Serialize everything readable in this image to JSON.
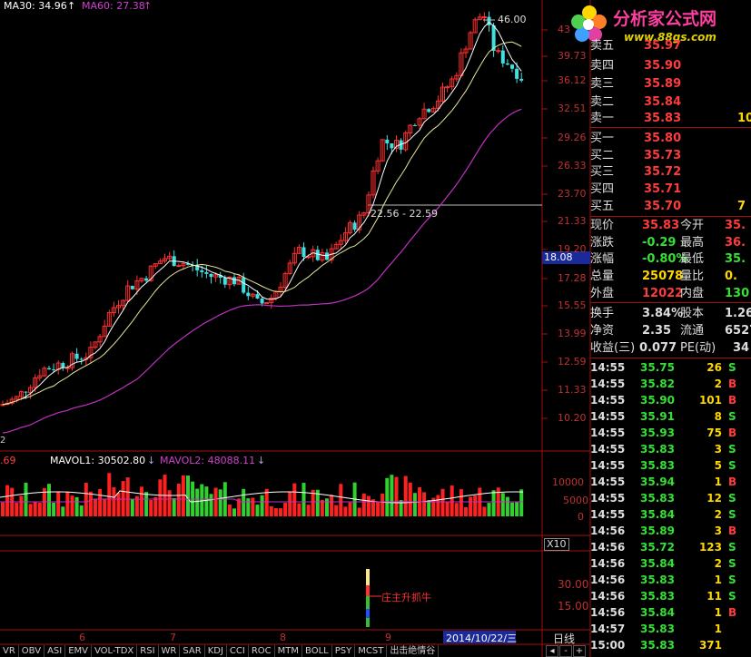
{
  "ma_labels": {
    "ma30": "MA30: 34.96",
    "ma60": "MA60: 27.38",
    "ma30_color": "#ffffff",
    "ma60_color": "#d040d0"
  },
  "logo": {
    "text": "分析家公式网",
    "url": "www.88gs.com"
  },
  "price_axis": [
    "43",
    "39.73",
    "36.12",
    "32.51",
    "29.26",
    "26.33",
    "23.70",
    "21.33",
    "19.20",
    "17.28",
    "15.55",
    "13.99",
    "12.59",
    "11.33",
    "10.20"
  ],
  "highlight_price": "18.08",
  "peak_label": "46.00",
  "range_label": "22.56 - 22.59",
  "left_stub": "2",
  "volume": {
    "left_stub": ".69",
    "mavol1": "MAVOL1: 30502.80",
    "mavol2": "MAVOL2: 48088.11",
    "axis": [
      "10000",
      "5000",
      "0"
    ],
    "scale": "X10"
  },
  "indicator": {
    "axis": [
      "30.00",
      "15.00"
    ],
    "label": "庄主升抓牛"
  },
  "months": [
    "6",
    "7",
    "8",
    "9"
  ],
  "date_box": "2014/10/22/三",
  "order_book": [
    {
      "name": "卖五",
      "price": "35.97",
      "vol": ""
    },
    {
      "name": "卖四",
      "price": "35.90",
      "vol": ""
    },
    {
      "name": "卖三",
      "price": "35.89",
      "vol": ""
    },
    {
      "name": "卖二",
      "price": "35.84",
      "vol": ""
    },
    {
      "name": "卖一",
      "price": "35.83",
      "vol": "10"
    },
    {
      "name": "买一",
      "price": "35.80",
      "vol": ""
    },
    {
      "name": "买二",
      "price": "35.73",
      "vol": ""
    },
    {
      "name": "买三",
      "price": "35.72",
      "vol": ""
    },
    {
      "name": "买四",
      "price": "35.71",
      "vol": ""
    },
    {
      "name": "买五",
      "price": "35.70",
      "vol": "7"
    }
  ],
  "stats": [
    {
      "l1": "现价",
      "v1": "35.83",
      "c1": "up",
      "l2": "今开",
      "v2": "35.",
      "c2": "up"
    },
    {
      "l1": "涨跌",
      "v1": "-0.29",
      "c1": "dn",
      "l2": "最高",
      "v2": "36.",
      "c2": "up"
    },
    {
      "l1": "涨幅",
      "v1": "-0.80%",
      "c1": "dn",
      "l2": "最低",
      "v2": "35.",
      "c2": "dn"
    },
    {
      "l1": "总量",
      "v1": "25078",
      "c1": "yel",
      "l2": "量比",
      "v2": "0.",
      "c2": "yel"
    },
    {
      "l1": "外盘",
      "v1": "12022",
      "c1": "up",
      "l2": "内盘",
      "v2": "130",
      "c2": "dn"
    },
    {
      "l1": "换手",
      "v1": "3.84%",
      "c1": "wh",
      "l2": "股本",
      "v2": "1.26",
      "c2": "wh"
    },
    {
      "l1": "净资",
      "v1": "2.35",
      "c1": "wh",
      "l2": "流通",
      "v2": "6527",
      "c2": "wh"
    },
    {
      "l1": "收益(三)",
      "v1": "0.077",
      "c1": "wh",
      "l2": "PE(动)",
      "v2": "34",
      "c2": "wh"
    }
  ],
  "ticks": [
    {
      "t": "14:55",
      "p": "35.75",
      "pc": "dn",
      "v": "26",
      "f": "S"
    },
    {
      "t": "14:55",
      "p": "35.82",
      "pc": "dn",
      "v": "2",
      "f": "B"
    },
    {
      "t": "14:55",
      "p": "35.90",
      "pc": "dn",
      "v": "101",
      "f": "B"
    },
    {
      "t": "14:55",
      "p": "35.91",
      "pc": "dn",
      "v": "8",
      "f": "S"
    },
    {
      "t": "14:55",
      "p": "35.93",
      "pc": "dn",
      "v": "75",
      "f": "B"
    },
    {
      "t": "14:55",
      "p": "35.83",
      "pc": "dn",
      "v": "3",
      "f": "S"
    },
    {
      "t": "14:55",
      "p": "35.83",
      "pc": "dn",
      "v": "5",
      "f": "S"
    },
    {
      "t": "14:55",
      "p": "35.94",
      "pc": "dn",
      "v": "1",
      "f": "B"
    },
    {
      "t": "14:55",
      "p": "35.83",
      "pc": "dn",
      "v": "12",
      "f": "S"
    },
    {
      "t": "14:55",
      "p": "35.84",
      "pc": "dn",
      "v": "2",
      "f": "S"
    },
    {
      "t": "14:56",
      "p": "35.89",
      "pc": "dn",
      "v": "3",
      "f": "B"
    },
    {
      "t": "14:56",
      "p": "35.72",
      "pc": "dn",
      "v": "123",
      "f": "S"
    },
    {
      "t": "14:56",
      "p": "35.84",
      "pc": "dn",
      "v": "2",
      "f": "S"
    },
    {
      "t": "14:56",
      "p": "35.83",
      "pc": "dn",
      "v": "1",
      "f": "S"
    },
    {
      "t": "14:56",
      "p": "35.83",
      "pc": "dn",
      "v": "11",
      "f": "S"
    },
    {
      "t": "14:56",
      "p": "35.84",
      "pc": "dn",
      "v": "1",
      "f": "B"
    },
    {
      "t": "14:57",
      "p": "35.83",
      "pc": "dn",
      "v": "1",
      "f": ""
    },
    {
      "t": "15:00",
      "p": "35.83",
      "pc": "dn",
      "v": "371",
      "f": ""
    }
  ],
  "tabs": [
    "VR",
    "OBV",
    "ASI",
    "EMV",
    "VOL-TDX",
    "RSI",
    "WR",
    "SAR",
    "KDJ",
    "CCI",
    "ROC",
    "MTM",
    "BOLL",
    "PSY",
    "MCST",
    "出击绝情谷"
  ],
  "bottom_controls": {
    "daily": "日线",
    "minus": "-",
    "plus": "+",
    "ctrl": "-"
  }
}
